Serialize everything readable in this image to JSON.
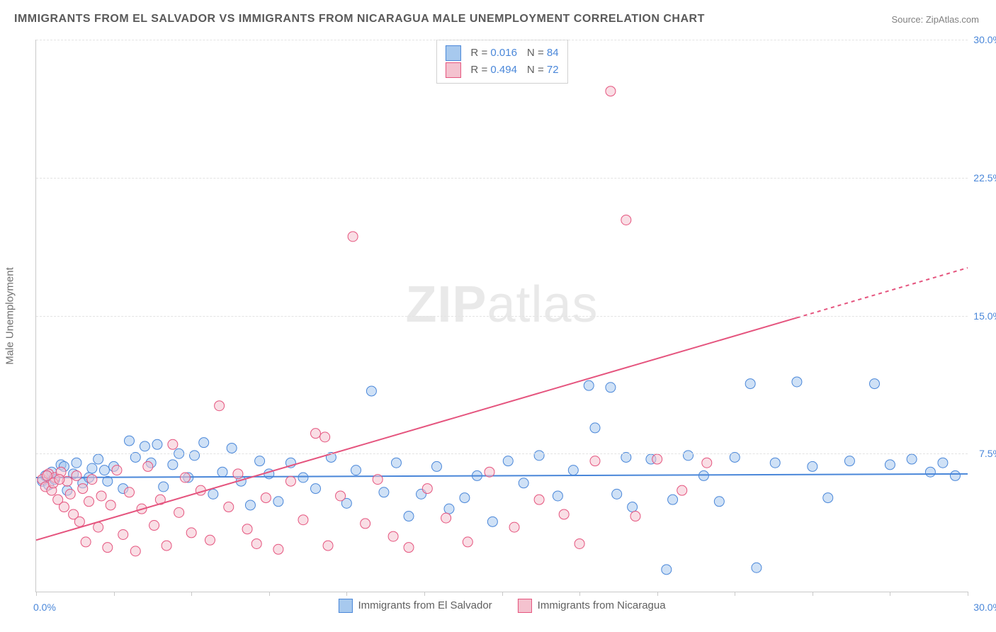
{
  "title": "IMMIGRANTS FROM EL SALVADOR VS IMMIGRANTS FROM NICARAGUA MALE UNEMPLOYMENT CORRELATION CHART",
  "source_prefix": "Source: ",
  "source_name": "ZipAtlas.com",
  "y_axis_title": "Male Unemployment",
  "watermark_a": "ZIP",
  "watermark_b": "atlas",
  "chart": {
    "type": "scatter",
    "xlim": [
      0,
      30
    ],
    "ylim": [
      0,
      30
    ],
    "x_ticks": [
      0,
      2.5,
      5,
      7.5,
      10,
      12.5,
      15,
      17.5,
      20,
      22.5,
      25,
      27.5,
      30
    ],
    "y_ticks": [
      7.5,
      15.0,
      22.5,
      30.0
    ],
    "y_tick_labels": [
      "7.5%",
      "15.0%",
      "22.5%",
      "30.0%"
    ],
    "x_range_labels": {
      "min": "0.0%",
      "max": "30.0%"
    },
    "background_color": "#ffffff",
    "grid_color": "#e3e3e3",
    "axis_color": "#c9c9c9",
    "tick_label_color": "#4a87d9",
    "axis_title_color": "#707070",
    "marker_radius": 7,
    "marker_opacity": 0.55,
    "line_width": 2,
    "series": [
      {
        "id": "el_salvador",
        "label": "Immigrants from El Salvador",
        "fill": "#a7c9ee",
        "stroke": "#4a87d9",
        "r_label": "R",
        "r_value": "0.016",
        "n_label": "N",
        "n_value": "84",
        "trend": {
          "y_at_x0": 6.2,
          "y_at_x30": 6.4,
          "dash_from_x": null
        },
        "points": [
          [
            0.2,
            6.0
          ],
          [
            0.3,
            6.3
          ],
          [
            0.4,
            5.8
          ],
          [
            0.5,
            6.5
          ],
          [
            0.6,
            6.1
          ],
          [
            0.8,
            6.9
          ],
          [
            1.0,
            5.5
          ],
          [
            1.2,
            6.4
          ],
          [
            1.3,
            7.0
          ],
          [
            1.5,
            5.9
          ],
          [
            1.8,
            6.7
          ],
          [
            2.0,
            7.2
          ],
          [
            2.3,
            6.0
          ],
          [
            2.5,
            6.8
          ],
          [
            2.8,
            5.6
          ],
          [
            3.0,
            8.2
          ],
          [
            3.2,
            7.3
          ],
          [
            3.5,
            7.9
          ],
          [
            3.7,
            7.0
          ],
          [
            3.9,
            8.0
          ],
          [
            4.1,
            5.7
          ],
          [
            4.4,
            6.9
          ],
          [
            4.6,
            7.5
          ],
          [
            4.9,
            6.2
          ],
          [
            5.1,
            7.4
          ],
          [
            5.4,
            8.1
          ],
          [
            5.7,
            5.3
          ],
          [
            6.0,
            6.5
          ],
          [
            6.3,
            7.8
          ],
          [
            6.6,
            6.0
          ],
          [
            6.9,
            4.7
          ],
          [
            7.2,
            7.1
          ],
          [
            7.5,
            6.4
          ],
          [
            7.8,
            4.9
          ],
          [
            8.2,
            7.0
          ],
          [
            8.6,
            6.2
          ],
          [
            9.0,
            5.6
          ],
          [
            9.5,
            7.3
          ],
          [
            10.0,
            4.8
          ],
          [
            10.3,
            6.6
          ],
          [
            10.8,
            10.9
          ],
          [
            11.2,
            5.4
          ],
          [
            11.6,
            7.0
          ],
          [
            12.0,
            4.1
          ],
          [
            12.4,
            5.3
          ],
          [
            12.9,
            6.8
          ],
          [
            13.3,
            4.5
          ],
          [
            13.8,
            5.1
          ],
          [
            14.2,
            6.3
          ],
          [
            14.7,
            3.8
          ],
          [
            15.2,
            7.1
          ],
          [
            15.7,
            5.9
          ],
          [
            16.2,
            7.4
          ],
          [
            16.8,
            5.2
          ],
          [
            17.3,
            6.6
          ],
          [
            17.8,
            11.2
          ],
          [
            18.0,
            8.9
          ],
          [
            18.5,
            11.1
          ],
          [
            18.7,
            5.3
          ],
          [
            19.0,
            7.3
          ],
          [
            19.2,
            4.6
          ],
          [
            19.8,
            7.2
          ],
          [
            20.3,
            1.2
          ],
          [
            20.5,
            5.0
          ],
          [
            21.0,
            7.4
          ],
          [
            21.5,
            6.3
          ],
          [
            22.0,
            4.9
          ],
          [
            22.5,
            7.3
          ],
          [
            23.0,
            11.3
          ],
          [
            23.2,
            1.3
          ],
          [
            23.8,
            7.0
          ],
          [
            24.5,
            11.4
          ],
          [
            25.0,
            6.8
          ],
          [
            25.5,
            5.1
          ],
          [
            26.2,
            7.1
          ],
          [
            27.0,
            11.3
          ],
          [
            27.5,
            6.9
          ],
          [
            28.2,
            7.2
          ],
          [
            28.8,
            6.5
          ],
          [
            29.2,
            7.0
          ],
          [
            29.6,
            6.3
          ],
          [
            0.9,
            6.8
          ],
          [
            1.7,
            6.2
          ],
          [
            2.2,
            6.6
          ]
        ]
      },
      {
        "id": "nicaragua",
        "label": "Immigrants from Nicaragua",
        "fill": "#f4c2cf",
        "stroke": "#e5547e",
        "r_label": "R",
        "r_value": "0.494",
        "n_label": "N",
        "n_value": "72",
        "trend": {
          "y_at_x0": 2.8,
          "y_at_x30": 17.6,
          "dash_from_x": 24.5
        },
        "points": [
          [
            0.2,
            6.1
          ],
          [
            0.3,
            5.7
          ],
          [
            0.4,
            6.4
          ],
          [
            0.5,
            5.5
          ],
          [
            0.6,
            6.2
          ],
          [
            0.7,
            5.0
          ],
          [
            0.8,
            6.5
          ],
          [
            0.9,
            4.6
          ],
          [
            1.0,
            6.0
          ],
          [
            1.1,
            5.3
          ],
          [
            1.2,
            4.2
          ],
          [
            1.3,
            6.3
          ],
          [
            1.4,
            3.8
          ],
          [
            1.5,
            5.6
          ],
          [
            1.6,
            2.7
          ],
          [
            1.7,
            4.9
          ],
          [
            1.8,
            6.1
          ],
          [
            2.0,
            3.5
          ],
          [
            2.1,
            5.2
          ],
          [
            2.3,
            2.4
          ],
          [
            2.4,
            4.7
          ],
          [
            2.6,
            6.6
          ],
          [
            2.8,
            3.1
          ],
          [
            3.0,
            5.4
          ],
          [
            3.2,
            2.2
          ],
          [
            3.4,
            4.5
          ],
          [
            3.6,
            6.8
          ],
          [
            3.8,
            3.6
          ],
          [
            4.0,
            5.0
          ],
          [
            4.2,
            2.5
          ],
          [
            4.4,
            8.0
          ],
          [
            4.6,
            4.3
          ],
          [
            4.8,
            6.2
          ],
          [
            5.0,
            3.2
          ],
          [
            5.3,
            5.5
          ],
          [
            5.6,
            2.8
          ],
          [
            5.9,
            10.1
          ],
          [
            6.2,
            4.6
          ],
          [
            6.5,
            6.4
          ],
          [
            6.8,
            3.4
          ],
          [
            7.1,
            2.6
          ],
          [
            7.4,
            5.1
          ],
          [
            7.8,
            2.3
          ],
          [
            8.2,
            6.0
          ],
          [
            8.6,
            3.9
          ],
          [
            9.0,
            8.6
          ],
          [
            9.3,
            8.4
          ],
          [
            9.4,
            2.5
          ],
          [
            9.8,
            5.2
          ],
          [
            10.2,
            19.3
          ],
          [
            10.6,
            3.7
          ],
          [
            11.0,
            6.1
          ],
          [
            11.5,
            3.0
          ],
          [
            12.0,
            2.4
          ],
          [
            12.6,
            5.6
          ],
          [
            13.2,
            4.0
          ],
          [
            13.9,
            2.7
          ],
          [
            14.6,
            6.5
          ],
          [
            15.4,
            3.5
          ],
          [
            16.2,
            5.0
          ],
          [
            17.0,
            4.2
          ],
          [
            17.5,
            2.6
          ],
          [
            18.0,
            7.1
          ],
          [
            18.5,
            27.2
          ],
          [
            19.0,
            20.2
          ],
          [
            19.3,
            4.1
          ],
          [
            20.0,
            7.2
          ],
          [
            20.8,
            5.5
          ],
          [
            21.6,
            7.0
          ],
          [
            0.35,
            6.3
          ],
          [
            0.55,
            5.9
          ],
          [
            0.75,
            6.1
          ]
        ]
      }
    ]
  }
}
